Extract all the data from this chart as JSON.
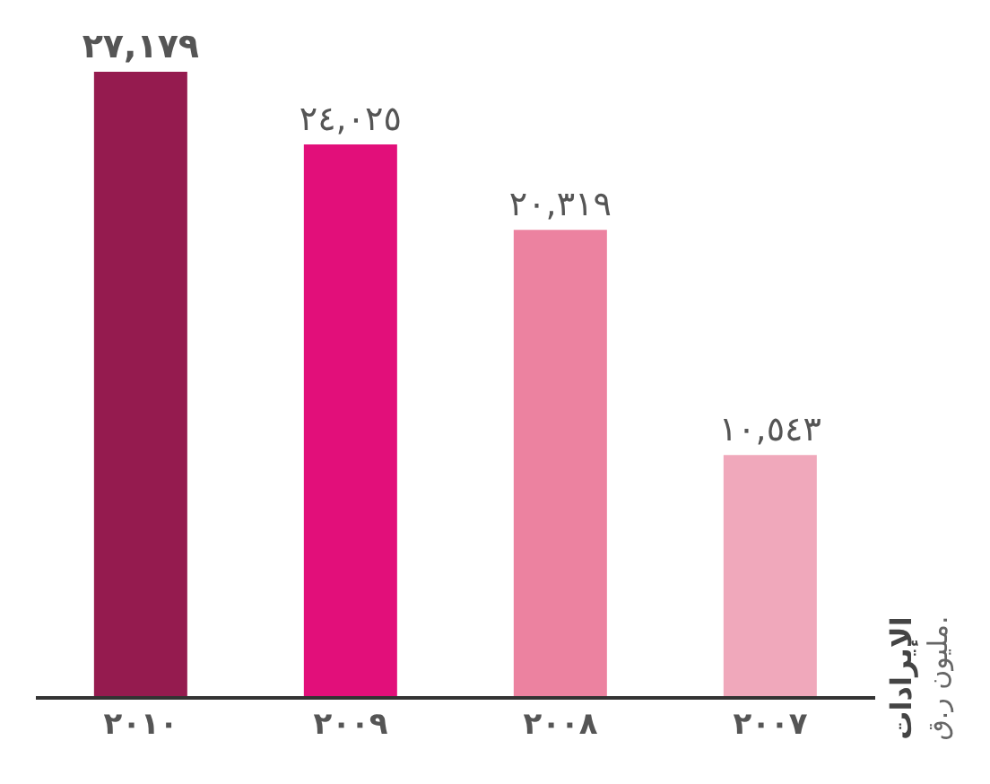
{
  "chart_data": {
    "type": "bar",
    "categories": [
      "٢٠١٠",
      "٢٠٠٩",
      "٢٠٠٨",
      "٢٠٠٧"
    ],
    "values": [
      27179,
      24025,
      20319,
      10543
    ],
    "colors": [
      "#951b4f",
      "#e20f7a",
      "#ec82a0",
      "#f0a8bb"
    ],
    "value_labels": [
      "٢٧,١٧٩",
      "٢٤,٠٢٥",
      "٢٠,٣١٩",
      "١٠,٥٤٣"
    ],
    "ylabel": "الإيرادات",
    "annotations": [
      "مليون ر.ق."
    ],
    "grid": false,
    "legend": false
  }
}
